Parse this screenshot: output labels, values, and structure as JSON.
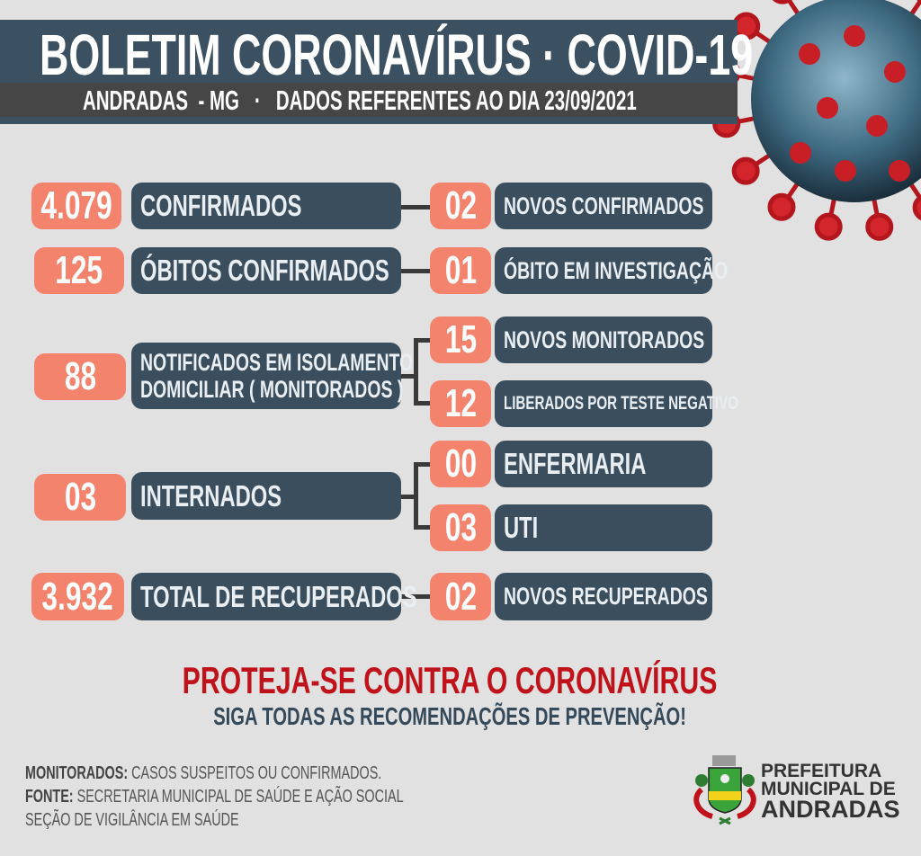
{
  "header": {
    "title": "BOLETIM CORONAVÍRUS · COVID-19",
    "subtitle": "ANDRADAS  - MG   ·   DADOS REFERENTES AO DIA 23/09/2021"
  },
  "rows": [
    {
      "value": "4.079",
      "label": "CONFIRMADOS",
      "right": [
        {
          "value": "02",
          "label": "NOVOS CONFIRMADOS"
        }
      ]
    },
    {
      "value": "125",
      "label": "ÓBITOS CONFIRMADOS",
      "right": [
        {
          "value": "01",
          "label": "ÓBITO EM INVESTIGAÇÃO"
        }
      ]
    },
    {
      "value": "88",
      "label_line1": "NOTIFICADOS EM ISOLAMENTO",
      "label_line2": "DOMICILIAR ( MONITORADOS )",
      "right": [
        {
          "value": "15",
          "label": "NOVOS MONITORADOS"
        },
        {
          "value": "12",
          "label": "LIBERADOS POR TESTE NEGATIVO"
        }
      ]
    },
    {
      "value": "03",
      "label": "INTERNADOS",
      "right": [
        {
          "value": "00",
          "label": "ENFERMARIA"
        },
        {
          "value": "03",
          "label": "UTI"
        }
      ]
    },
    {
      "value": "3.932",
      "label": "TOTAL DE RECUPERADOS",
      "right": [
        {
          "value": "02",
          "label": "NOVOS RECUPERADOS"
        }
      ]
    }
  ],
  "slogan": {
    "headline": "PROTEJA-SE CONTRA O CORONAVÍRUS",
    "subline": "SIGA TODAS AS RECOMENDAÇÕES DE PREVENÇÃO!"
  },
  "footer": {
    "monitorados_label": "MONITORADOS:",
    "monitorados_text": " CASOS SUSPEITOS OU CONFIRMADOS.",
    "fonte_label": "FONTE:",
    "fonte_text": " SECRETARIA MUNICIPAL DE SAÚDE E AÇÃO SOCIAL",
    "secao": "SEÇÃO DE VIGILÂNCIA EM SAÚDE"
  },
  "logo": {
    "line1": "PREFEITURA",
    "line2": "MUNICIPAL DE",
    "line3": "ANDRADAS"
  },
  "colors": {
    "accent": "#f4836d",
    "panel": "#3b4e5d",
    "header": "#3b5162",
    "slogan_red": "#c0121b",
    "slogan_blue": "#34495a",
    "background": "#e1e1e1"
  }
}
